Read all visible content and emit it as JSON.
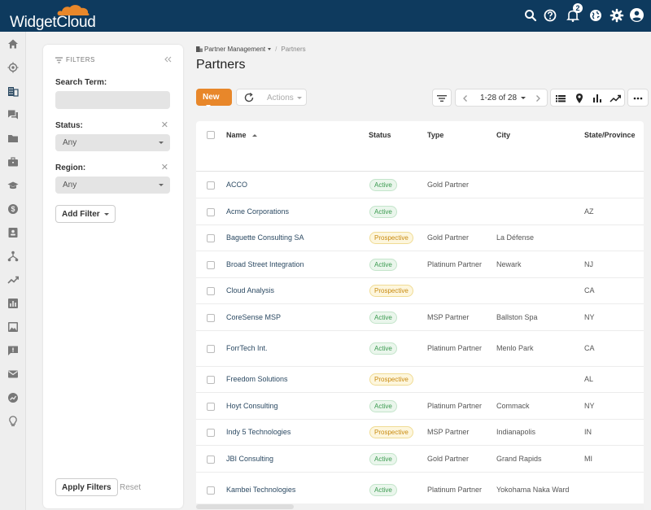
{
  "app": {
    "logo_text": "WidgetCloud",
    "notification_count": "2",
    "accent_color": "#e8872a",
    "header_color": "#0e3a5e"
  },
  "top_icons": [
    "search-icon",
    "help-icon",
    "bell-icon",
    "globe-icon",
    "gear-icon",
    "account-icon"
  ],
  "sidebar": {
    "icons": [
      "home-icon",
      "target-icon",
      "building-icon",
      "chat-icon",
      "folder-icon",
      "briefcase-icon",
      "graduation-cap-icon",
      "dollar-icon",
      "contact-card-icon",
      "hierarchy-icon",
      "trending-icon",
      "bar-chart-icon",
      "image-icon",
      "feedback-icon",
      "mail-icon",
      "analytics-icon",
      "lightbulb-icon"
    ]
  },
  "filters": {
    "heading": "FILTERS",
    "search_label": "Search Term:",
    "search_value": "",
    "status_label": "Status:",
    "status_value": "Any",
    "region_label": "Region:",
    "region_value": "Any",
    "add_filter_label": "Add Filter",
    "apply_label": "Apply Filters",
    "reset_label": "Reset"
  },
  "breadcrumb": {
    "parent": "Partner Management",
    "separator": "/",
    "current": "Partners"
  },
  "page": {
    "title": "Partners"
  },
  "toolbar": {
    "new_label": "New",
    "actions_label": "Actions",
    "pager_text": "1-28 of 28"
  },
  "table": {
    "columns": {
      "name": "Name",
      "status": "Status",
      "type": "Type",
      "city": "City",
      "state": "State/Province"
    },
    "rows": [
      {
        "name": "ACCO",
        "status": "Active",
        "type": "Gold Partner",
        "city": "",
        "state": ""
      },
      {
        "name": "Acme Corporations",
        "status": "Active",
        "type": "",
        "city": "",
        "state": "AZ"
      },
      {
        "name": "Baguette Consulting SA",
        "status": "Prospective",
        "type": "Gold Partner",
        "city": "La Défense",
        "state": ""
      },
      {
        "name": "Broad Street Integration",
        "status": "Active",
        "type": "Platinum Partner",
        "city": "Newark",
        "state": "NJ"
      },
      {
        "name": "Cloud Analysis",
        "status": "Prospective",
        "type": "",
        "city": "",
        "state": "CA"
      },
      {
        "name": "CoreSense MSP",
        "status": "Active",
        "type": "MSP Partner",
        "city": "Ballston Spa",
        "state": "NY"
      },
      {
        "name": "ForrTech Int.",
        "status": "Active",
        "type": "Platinum Partner",
        "city": "Menlo Park",
        "state": "CA"
      },
      {
        "name": "Freedom Solutions",
        "status": "Prospective",
        "type": "",
        "city": "",
        "state": "AL"
      },
      {
        "name": "Hoyt Consulting",
        "status": "Active",
        "type": "Platinum Partner",
        "city": "Commack",
        "state": "NY"
      },
      {
        "name": "Indy 5 Technologies",
        "status": "Prospective",
        "type": "MSP Partner",
        "city": "Indianapolis",
        "state": "IN"
      },
      {
        "name": "JBI Consulting",
        "status": "Active",
        "type": "Gold Partner",
        "city": "Grand Rapids",
        "state": "MI"
      },
      {
        "name": "Kambei Technologies",
        "status": "Active",
        "type": "Platinum Partner",
        "city": "Yokohama Naka Ward",
        "state": ""
      }
    ]
  }
}
